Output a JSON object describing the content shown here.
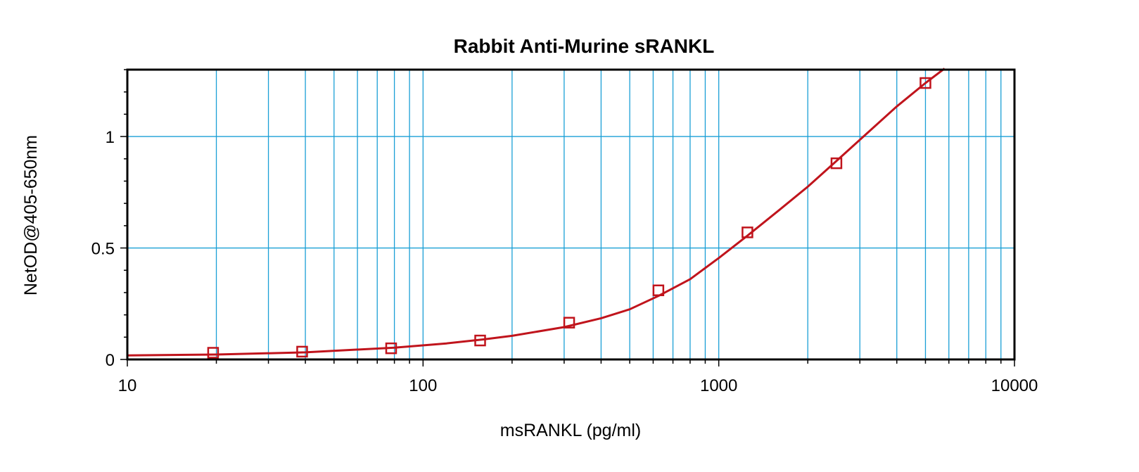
{
  "chart_data": {
    "type": "scatter",
    "title": "Rabbit Anti-Murine sRANKL",
    "xlabel": "msRANKL (pg/ml)",
    "ylabel": "NetOD@405-650nm",
    "x_scale": "log",
    "xlim": [
      10,
      10000
    ],
    "ylim": [
      0,
      1.3
    ],
    "x_ticks": [
      10,
      100,
      1000,
      10000
    ],
    "x_tick_labels": [
      "10",
      "100",
      "1000",
      "10000"
    ],
    "y_ticks": [
      0,
      0.5,
      1
    ],
    "y_tick_labels": [
      "0",
      "0.5",
      "1"
    ],
    "grid": true,
    "colors": {
      "grid": "#1a9fd6",
      "series": "#c0141c",
      "frame": "#000000"
    },
    "series": [
      {
        "marker": "square-open",
        "x": [
          19.5,
          39,
          78,
          156,
          312,
          625,
          1250,
          2500,
          5000
        ],
        "y": [
          0.03,
          0.035,
          0.05,
          0.085,
          0.165,
          0.31,
          0.57,
          0.88,
          1.24
        ]
      }
    ],
    "fit_curve": {
      "x": [
        10,
        20,
        40,
        80,
        120,
        160,
        200,
        300,
        400,
        500,
        625,
        800,
        1000,
        1250,
        1600,
        2000,
        2500,
        3000,
        4000,
        5000,
        5800
      ],
      "y": [
        0.018,
        0.022,
        0.032,
        0.053,
        0.072,
        0.09,
        0.106,
        0.145,
        0.185,
        0.225,
        0.285,
        0.36,
        0.455,
        0.555,
        0.67,
        0.775,
        0.89,
        0.985,
        1.135,
        1.24,
        1.305
      ]
    }
  }
}
